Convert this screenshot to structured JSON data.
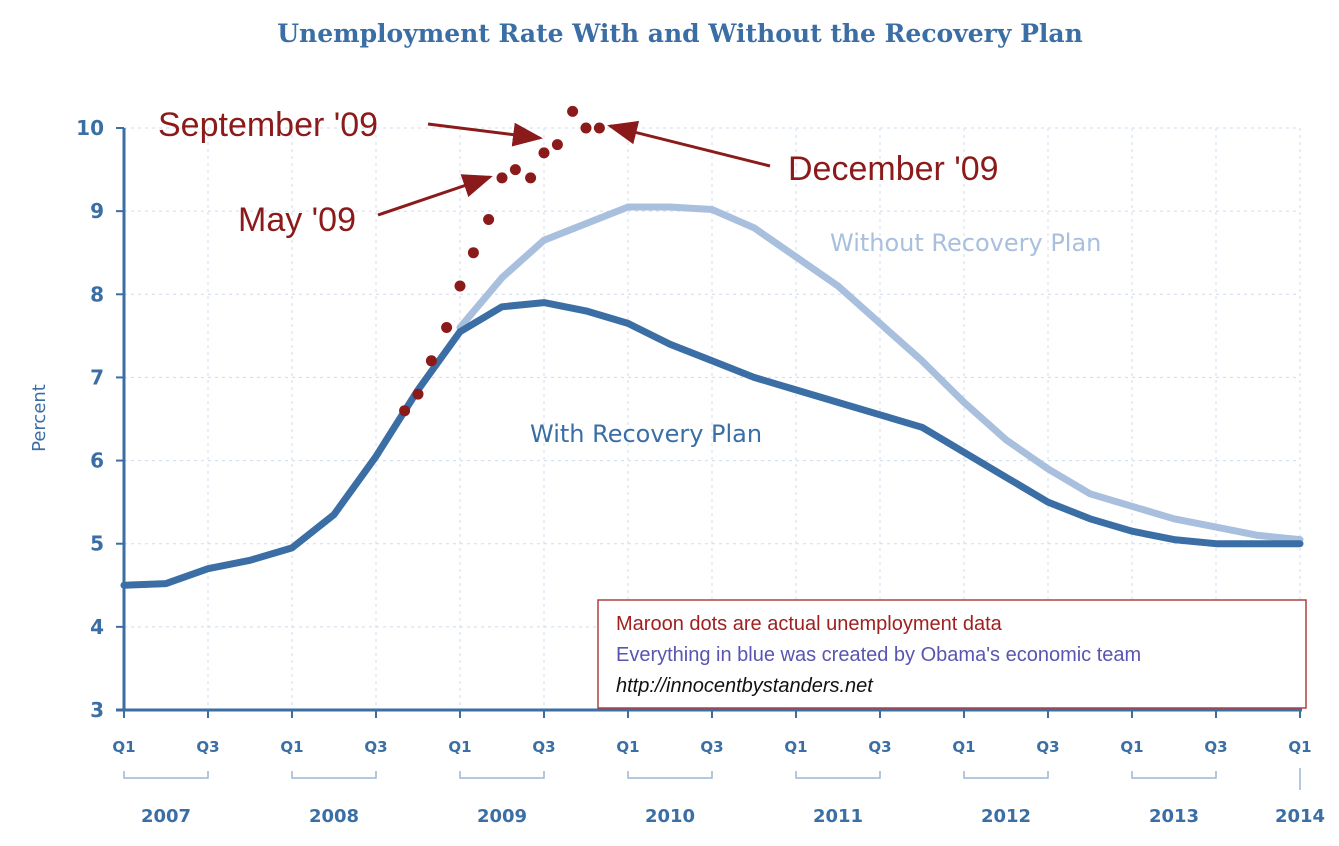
{
  "chart_data": {
    "type": "line",
    "title": "Unemployment Rate With and Without the Recovery Plan",
    "ylabel": "Percent",
    "ylim": [
      3,
      10
    ],
    "yticks": [
      "3",
      "4",
      "5",
      "6",
      "7",
      "8",
      "9",
      "10"
    ],
    "quarter_ticks": [
      "Q1",
      "Q3",
      "Q1",
      "Q3",
      "Q1",
      "Q3",
      "Q1",
      "Q3",
      "Q1",
      "Q3",
      "Q1",
      "Q3",
      "Q1",
      "Q3",
      "Q1"
    ],
    "year_ticks": [
      "2007",
      "2008",
      "2009",
      "2010",
      "2011",
      "2012",
      "2013",
      "2014"
    ],
    "xlim": [
      2007.0,
      2014.0
    ],
    "grid": true,
    "series": [
      {
        "name": "With Recovery Plan",
        "color": "#3a6ea5",
        "points": [
          [
            2007.0,
            4.5
          ],
          [
            2007.25,
            4.52
          ],
          [
            2007.5,
            4.7
          ],
          [
            2007.75,
            4.8
          ],
          [
            2008.0,
            4.95
          ],
          [
            2008.25,
            5.35
          ],
          [
            2008.5,
            6.05
          ],
          [
            2008.75,
            6.85
          ],
          [
            2009.0,
            7.55
          ],
          [
            2009.25,
            7.85
          ],
          [
            2009.5,
            7.9
          ],
          [
            2009.75,
            7.8
          ],
          [
            2010.0,
            7.65
          ],
          [
            2010.25,
            7.4
          ],
          [
            2010.5,
            7.2
          ],
          [
            2010.75,
            7.0
          ],
          [
            2011.0,
            6.85
          ],
          [
            2011.25,
            6.7
          ],
          [
            2011.5,
            6.55
          ],
          [
            2011.75,
            6.4
          ],
          [
            2012.0,
            6.1
          ],
          [
            2012.25,
            5.8
          ],
          [
            2012.5,
            5.5
          ],
          [
            2012.75,
            5.3
          ],
          [
            2013.0,
            5.15
          ],
          [
            2013.25,
            5.05
          ],
          [
            2013.5,
            5.0
          ],
          [
            2013.75,
            5.0
          ],
          [
            2014.0,
            5.0
          ]
        ]
      },
      {
        "name": "Without Recovery Plan",
        "color": "#a8bfdd",
        "points": [
          [
            2009.0,
            7.6
          ],
          [
            2009.25,
            8.2
          ],
          [
            2009.5,
            8.65
          ],
          [
            2009.75,
            8.85
          ],
          [
            2010.0,
            9.05
          ],
          [
            2010.25,
            9.05
          ],
          [
            2010.5,
            9.02
          ],
          [
            2010.75,
            8.8
          ],
          [
            2011.0,
            8.45
          ],
          [
            2011.25,
            8.1
          ],
          [
            2011.5,
            7.65
          ],
          [
            2011.75,
            7.2
          ],
          [
            2012.0,
            6.7
          ],
          [
            2012.25,
            6.25
          ],
          [
            2012.5,
            5.9
          ],
          [
            2012.75,
            5.6
          ],
          [
            2013.0,
            5.45
          ],
          [
            2013.25,
            5.3
          ],
          [
            2013.5,
            5.2
          ],
          [
            2013.75,
            5.1
          ],
          [
            2014.0,
            5.05
          ]
        ]
      },
      {
        "name": "Maroon dots are actual unemployment data",
        "color": "#8b1a1a",
        "points": [
          [
            2008.67,
            6.6
          ],
          [
            2008.75,
            6.8
          ],
          [
            2008.83,
            7.2
          ],
          [
            2008.92,
            7.6
          ],
          [
            2009.0,
            8.1
          ],
          [
            2009.08,
            8.5
          ],
          [
            2009.17,
            8.9
          ],
          [
            2009.25,
            9.4
          ],
          [
            2009.33,
            9.5
          ],
          [
            2009.42,
            9.4
          ],
          [
            2009.5,
            9.7
          ],
          [
            2009.58,
            9.8
          ],
          [
            2009.67,
            10.2
          ],
          [
            2009.75,
            10.0
          ],
          [
            2009.83,
            10.0
          ]
        ]
      }
    ],
    "annotations": [
      {
        "text": "September '09"
      },
      {
        "text": "May '09"
      },
      {
        "text": "December '09"
      }
    ],
    "series_labels": {
      "without": "Without Recovery Plan",
      "with": "With Recovery Plan"
    },
    "note": {
      "line1": "Maroon dots are actual unemployment data",
      "line2": "Everything in blue was created by Obama's economic team",
      "line3": "http://innocentbystanders.net",
      "color1": "#a02020",
      "color2": "#5a55b0",
      "color3": "#111111",
      "border": "#b04040"
    }
  }
}
